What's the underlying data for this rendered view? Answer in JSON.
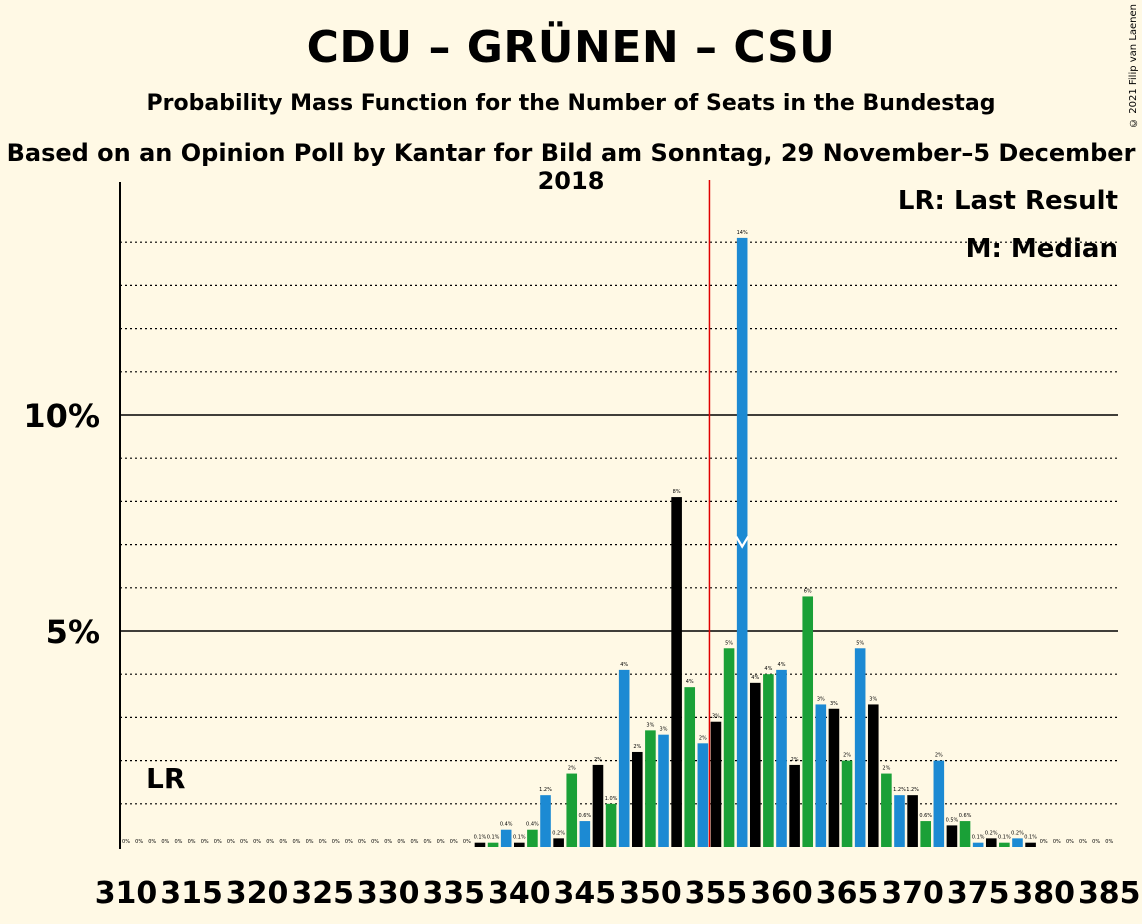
{
  "header": {
    "title": "CDU – GRÜNEN – CSU",
    "subtitle": "Probability Mass Function for the Number of Seats in the Bundestag",
    "subtitle2": "Based on an Opinion Poll by Kantar for Bild am Sonntag, 29 November–5 December 2018",
    "copyright": "© 2021 Filip van Laenen"
  },
  "colors": {
    "background": "#fff9e5",
    "black": "#000000",
    "green": "#1aa037",
    "blue": "#1c8ad3",
    "red": "#e00000"
  },
  "chart_data": {
    "type": "bar",
    "title": "CDU – GRÜNEN – CSU",
    "x": [
      310,
      311,
      312,
      313,
      314,
      315,
      316,
      317,
      318,
      319,
      320,
      321,
      322,
      323,
      324,
      325,
      326,
      327,
      328,
      329,
      330,
      331,
      332,
      333,
      334,
      335,
      336,
      337,
      338,
      339,
      340,
      341,
      342,
      343,
      344,
      345,
      346,
      347,
      348,
      349,
      350,
      351,
      352,
      353,
      354,
      355,
      356,
      357,
      358,
      359,
      360,
      361,
      362,
      363,
      364,
      365,
      366,
      367,
      368,
      369,
      370,
      371,
      372,
      373,
      374,
      375,
      376,
      377,
      378,
      379,
      380,
      381,
      382,
      383,
      384,
      385
    ],
    "values": [
      0,
      0,
      0,
      0,
      0,
      0,
      0,
      0,
      0,
      0,
      0,
      0,
      0,
      0,
      0,
      0,
      0,
      0,
      0,
      0,
      0,
      0,
      0,
      0,
      0,
      0,
      0,
      0.1,
      0.1,
      0.4,
      0.1,
      0.4,
      1.2,
      0.2,
      1.7,
      0.6,
      1.9,
      1.0,
      4.1,
      2.2,
      2.7,
      2.6,
      8.1,
      3.7,
      2.4,
      2.9,
      4.6,
      14.1,
      3.8,
      4.0,
      4.1,
      1.9,
      5.8,
      3.3,
      3.2,
      2.0,
      4.6,
      3.3,
      1.7,
      1.2,
      1.2,
      0.6,
      2.0,
      0.5,
      0.6,
      0.1,
      0.2,
      0.1,
      0.2,
      0.1,
      0,
      0,
      0,
      0,
      0,
      0
    ],
    "value_labels": [
      "0%",
      "0%",
      "0%",
      "0%",
      "0%",
      "0%",
      "0%",
      "0%",
      "0%",
      "0%",
      "0%",
      "0%",
      "0%",
      "0%",
      "0%",
      "0%",
      "0%",
      "0%",
      "0%",
      "0%",
      "0%",
      "0%",
      "0%",
      "0%",
      "0%",
      "0%",
      "0%",
      "0.1%",
      "0.1%",
      "0.4%",
      "0.1%",
      "0.4%",
      "1.2%",
      "0.2%",
      "2%",
      "0.6%",
      "2%",
      "1.0%",
      "4%",
      "2%",
      "3%",
      "3%",
      "8%",
      "4%",
      "2%",
      "3%",
      "5%",
      "14%",
      "4%",
      "4%",
      "4%",
      "2%",
      "6%",
      "3%",
      "3%",
      "2%",
      "5%",
      "3%",
      "2%",
      "1.2%",
      "1.2%",
      "0.6%",
      "2%",
      "0.5%",
      "0.6%",
      "0.1%",
      "0.2%",
      "0.1%",
      "0.2%",
      "0.1%",
      "0%",
      "0%",
      "0%",
      "0%",
      "0%",
      "0%"
    ],
    "bar_colors_cycle": [
      "black",
      "green",
      "blue"
    ],
    "y_ticks": [
      "5%",
      "10%"
    ],
    "x_ticks": [
      "310",
      "315",
      "320",
      "325",
      "330",
      "335",
      "340",
      "345",
      "350",
      "355",
      "360",
      "365",
      "370",
      "375",
      "380",
      "385"
    ],
    "ylim": [
      0,
      15.3
    ],
    "last_result_seat": 310,
    "majority_seat": 355,
    "median_seat": 357,
    "legend": {
      "lr": "LR: Last Result",
      "m": "M: Median",
      "lr_short": "LR",
      "m_short": "M"
    }
  }
}
